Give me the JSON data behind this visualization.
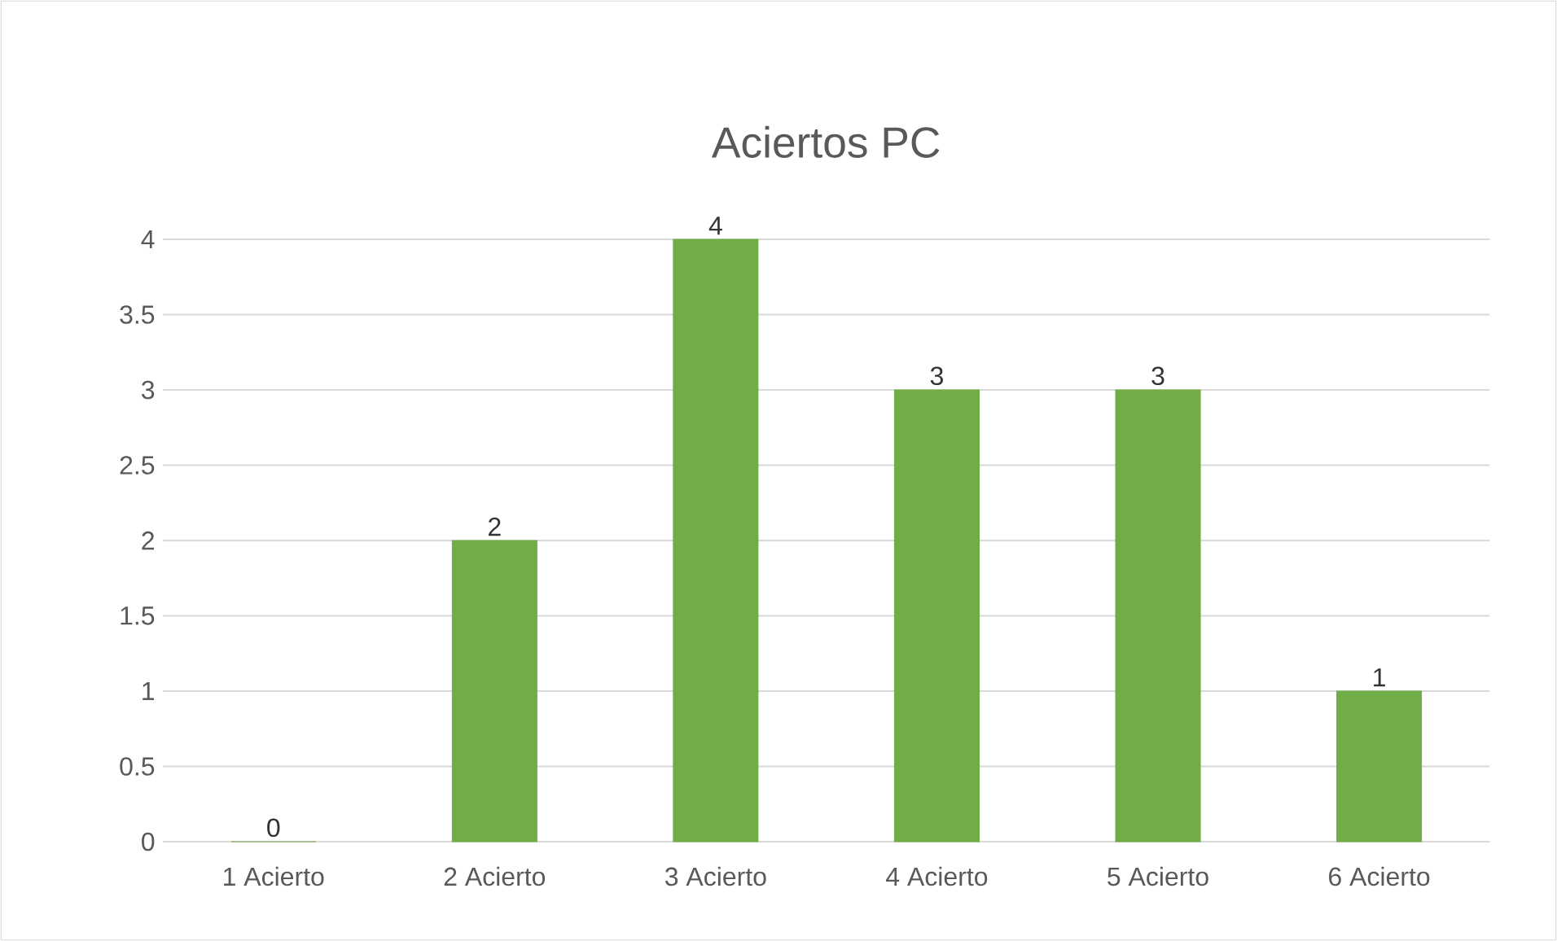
{
  "chart_data": {
    "type": "bar",
    "title": "Aciertos PC",
    "categories": [
      "1 Acierto",
      "2 Acierto",
      "3 Acierto",
      "4 Acierto",
      "5 Acierto",
      "6 Acierto"
    ],
    "values": [
      0,
      2,
      4,
      3,
      3,
      1
    ],
    "color": "#70ad47",
    "ylim": [
      0,
      4
    ],
    "yticks": [
      0,
      0.5,
      1,
      1.5,
      2,
      2.5,
      3,
      3.5,
      4
    ],
    "grid": "y",
    "data_labels": true
  }
}
